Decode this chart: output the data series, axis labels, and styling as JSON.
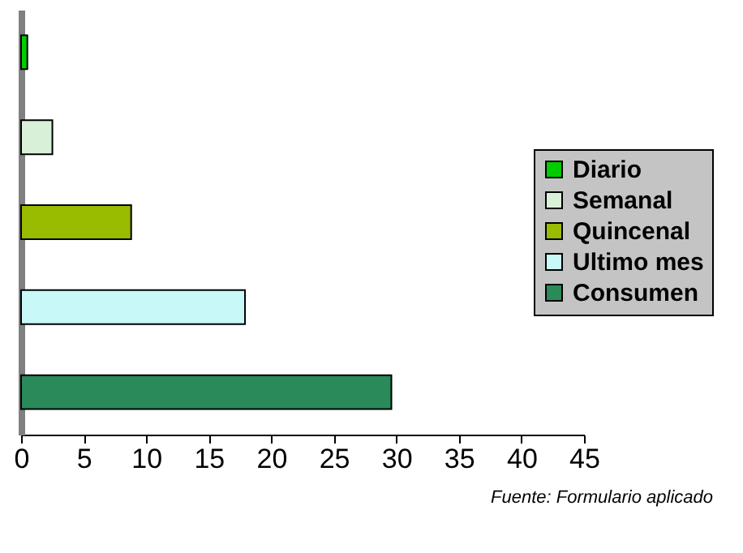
{
  "chart_data": {
    "type": "bar",
    "orientation": "horizontal",
    "categories": [
      null,
      null,
      null,
      null,
      null
    ],
    "series": [
      {
        "name": "Diario",
        "color": "#00cc00",
        "values": [
          0.5,
          null,
          null,
          null,
          null
        ]
      },
      {
        "name": "Semanal",
        "color": "#d8f0d8",
        "values": [
          null,
          2.5,
          null,
          null,
          null
        ]
      },
      {
        "name": "Quincenal",
        "color": "#99bb00",
        "values": [
          null,
          null,
          8.8,
          null,
          null
        ]
      },
      {
        "name": "Ultimo mes",
        "color": "#c8f8f8",
        "values": [
          null,
          null,
          null,
          17.9,
          null
        ]
      },
      {
        "name": "Consumen",
        "color": "#2a8a5a",
        "values": [
          null,
          null,
          null,
          null,
          29.6
        ]
      }
    ],
    "xlim": [
      0,
      45
    ],
    "xticks": [
      0,
      5,
      10,
      15,
      20,
      25,
      30,
      35,
      40,
      45
    ],
    "legend": "right",
    "grid": false,
    "annotations": [
      "Fuente: Formulario aplicado"
    ]
  }
}
